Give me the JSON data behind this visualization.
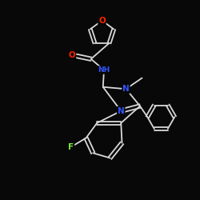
{
  "bg_color": "#080808",
  "bond_color": "#d8d8d8",
  "atom_colors": {
    "O": "#ff2200",
    "N": "#3355ff",
    "F": "#77ee33",
    "C": "#d8d8d8"
  },
  "font_size": 6.5,
  "bond_width": 1.3
}
